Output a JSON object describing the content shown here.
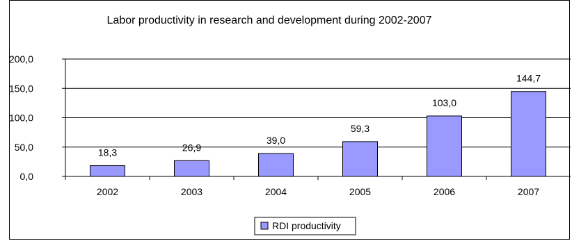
{
  "chart_data": {
    "type": "bar",
    "title": "Labor productivity in research and development during 2002-2007",
    "categories": [
      "2002",
      "2003",
      "2004",
      "2005",
      "2006",
      "2007"
    ],
    "series": [
      {
        "name": "RDI productivity",
        "values": [
          18.3,
          26.9,
          39.0,
          59.3,
          103.0,
          144.7
        ],
        "labels": [
          "18,3",
          "26,9",
          "39,0",
          "59,3",
          "103,0",
          "144,7"
        ],
        "color": "#9999ff"
      }
    ],
    "ylim": [
      0,
      200
    ],
    "yticks": [
      0,
      50,
      100,
      150,
      200
    ],
    "ytick_labels": [
      "0,0",
      "50,0",
      "100,0",
      "150,0",
      "200,0"
    ],
    "grid": true,
    "legend": {
      "position": "bottom"
    }
  }
}
